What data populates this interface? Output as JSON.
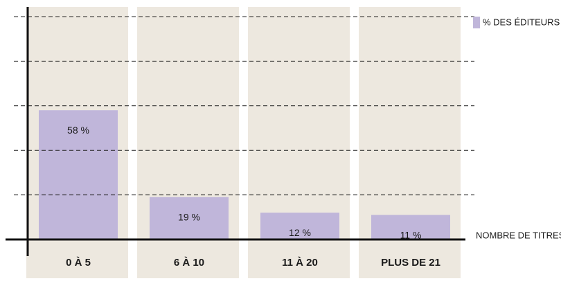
{
  "chart_data": {
    "type": "bar",
    "x_label": "NOMBRE DE TITRES",
    "categories": [
      "0 À 5",
      "6 À 10",
      "11 À 20",
      "PLUS DE 21"
    ],
    "series": [
      {
        "name": "% DES ÉDITEURS",
        "color": "#c0b6da",
        "values": [
          58,
          19,
          12,
          11
        ],
        "value_labels": [
          "58 %",
          "19 %",
          "12 %",
          "11 %"
        ]
      }
    ],
    "ylim": [
      0,
      100
    ],
    "yticks": [
      20,
      40,
      60,
      80,
      100
    ],
    "grid": true,
    "legend": "top-right"
  }
}
